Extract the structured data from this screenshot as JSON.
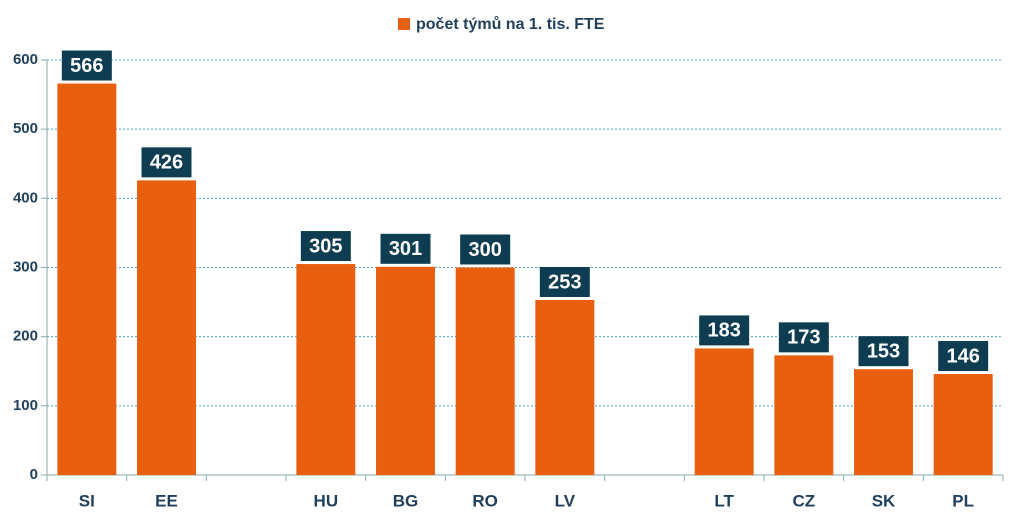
{
  "chart_data": {
    "type": "bar",
    "legend": "počet týmů na 1. tis. FTE",
    "categories": [
      "SI",
      "EE",
      null,
      "HU",
      "BG",
      "RO",
      "LV",
      null,
      "LT",
      "CZ",
      "SK",
      "PL"
    ],
    "series": [
      {
        "name": "počet týmů na 1. tis. FTE",
        "color": "#e8600f",
        "values": [
          566,
          426,
          null,
          305,
          301,
          300,
          253,
          null,
          183,
          173,
          153,
          146
        ]
      }
    ],
    "ylim": [
      0,
      600
    ],
    "yticks": [
      0,
      100,
      200,
      300,
      400,
      500,
      600
    ],
    "grid": true
  }
}
